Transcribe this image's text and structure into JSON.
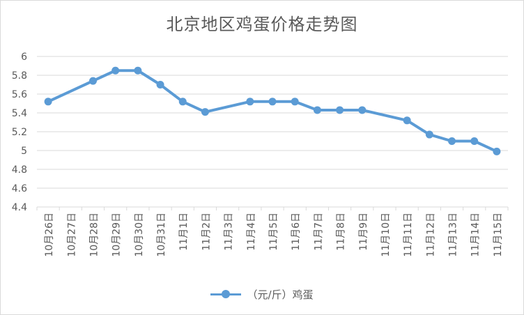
{
  "chart_data": {
    "type": "line",
    "title": "北京地区鸡蛋价格走势图",
    "categories": [
      "10月26日",
      "10月27日",
      "10月28日",
      "10月29日",
      "10月30日",
      "10月31日",
      "11月1日",
      "11月2日",
      "11月3日",
      "11月4日",
      "11月5日",
      "11月6日",
      "11月7日",
      "11月8日",
      "11月9日",
      "11月10日",
      "11月11日",
      "11月12日",
      "11月13日",
      "11月14日",
      "11月15日"
    ],
    "series": [
      {
        "name": "（元/斤）鸡蛋",
        "color": "#5b9bd5",
        "points": [
          {
            "x": "10月26日",
            "y": 5.52
          },
          {
            "x": "10月28日",
            "y": 5.74
          },
          {
            "x": "10月29日",
            "y": 5.85
          },
          {
            "x": "10月30日",
            "y": 5.85
          },
          {
            "x": "10月31日",
            "y": 5.7
          },
          {
            "x": "11月1日",
            "y": 5.52
          },
          {
            "x": "11月2日",
            "y": 5.41
          },
          {
            "x": "11月4日",
            "y": 5.52
          },
          {
            "x": "11月5日",
            "y": 5.52
          },
          {
            "x": "11月6日",
            "y": 5.52
          },
          {
            "x": "11月7日",
            "y": 5.43
          },
          {
            "x": "11月8日",
            "y": 5.43
          },
          {
            "x": "11月9日",
            "y": 5.43
          },
          {
            "x": "11月11日",
            "y": 5.32
          },
          {
            "x": "11月12日",
            "y": 5.17
          },
          {
            "x": "11月13日",
            "y": 5.1
          },
          {
            "x": "11月14日",
            "y": 5.1
          },
          {
            "x": "11月15日",
            "y": 4.99
          }
        ]
      }
    ],
    "ylim": [
      4.4,
      6.0
    ],
    "yticks": [
      "4.4",
      "4.6",
      "4.8",
      "5",
      "5.2",
      "5.4",
      "5.6",
      "5.8",
      "6"
    ],
    "grid": true,
    "legend": "bottom"
  }
}
